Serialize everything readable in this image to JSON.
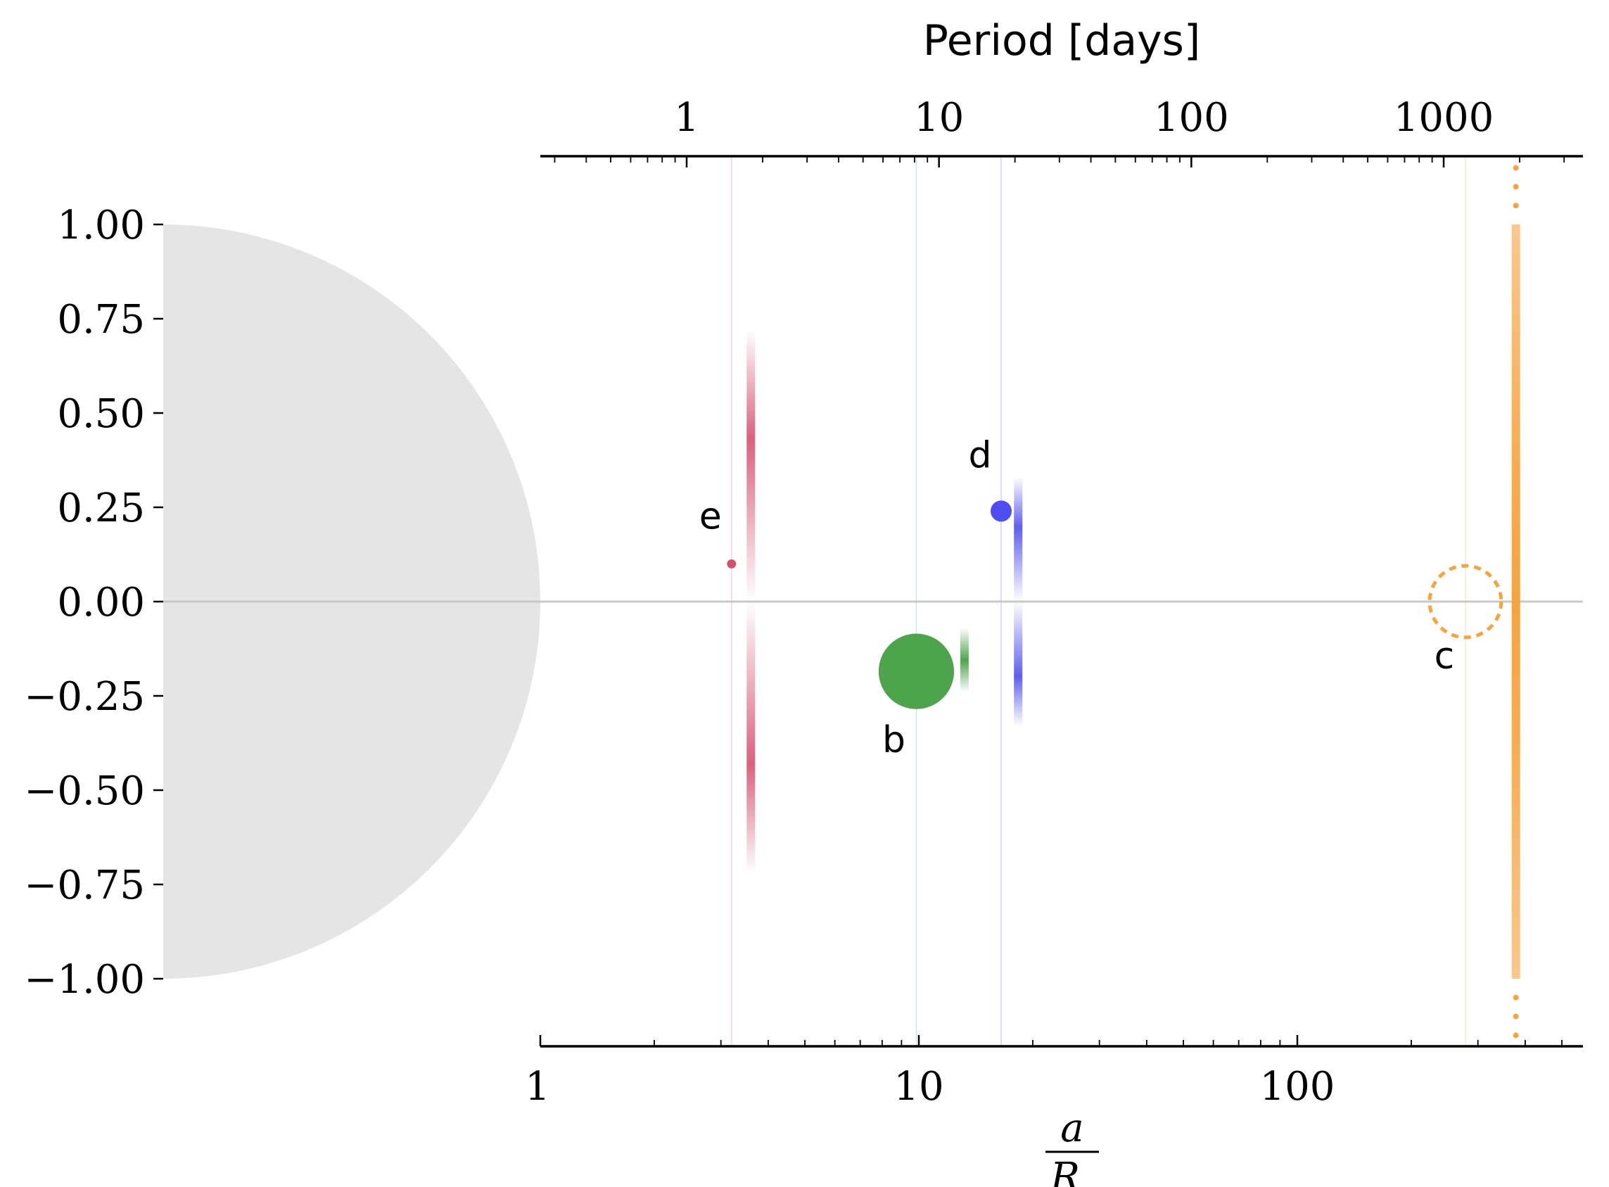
{
  "chart_data": {
    "type": "scatter",
    "title": "",
    "top_axis": {
      "label": "Period [days]",
      "scale": "log",
      "tick_labels": [
        "1",
        "10",
        "100",
        "1000"
      ]
    },
    "bottom_axis": {
      "label_numerator": "a",
      "label_denominator": "R",
      "label_subscript": "⋆",
      "scale": "log",
      "xlim": [
        1,
        550
      ],
      "tick_labels": [
        "1",
        "10",
        "100"
      ]
    },
    "y_axis": {
      "label": "",
      "ylim": [
        -1.18,
        1.18
      ],
      "tick_labels": [
        "1.00",
        "0.75",
        "0.50",
        "0.25",
        "0.00",
        "−0.25",
        "−0.50",
        "−0.75",
        "−1.00"
      ],
      "tick_values": [
        1.0,
        0.75,
        0.5,
        0.25,
        0.0,
        -0.25,
        -0.5,
        -0.75,
        -1.0
      ]
    },
    "star": {
      "radius": 1.0,
      "color": "#e5e5e5"
    },
    "zero_line_color": "#c8c8c8",
    "planets": [
      {
        "label": "e",
        "a_over_rstar": 3.2,
        "impact": 0.1,
        "size": 0.012,
        "color": "#d6506e",
        "style": "solid",
        "period_days": 0.75
      },
      {
        "label": "b",
        "a_over_rstar": 9.85,
        "impact": -0.185,
        "size": 0.1,
        "color": "#4ea44c",
        "style": "solid",
        "period_days": 4.3
      },
      {
        "label": "d",
        "a_over_rstar": 16.5,
        "impact": 0.24,
        "size": 0.028,
        "color": "#4e4df0",
        "style": "solid",
        "period_days": 9.2
      },
      {
        "label": "c",
        "a_over_rstar": 278,
        "impact": 0.0,
        "size": 0.095,
        "color": "#f6a440",
        "style": "dashed",
        "period_days": 625
      }
    ],
    "grazing_bands": [
      {
        "planet": "e",
        "a_over_rstar": 3.6,
        "color": "#d6506e",
        "from": -0.72,
        "to": 0.72
      },
      {
        "planet": "b",
        "a_over_rstar": 13.2,
        "color": "#4ea44c",
        "from": -0.24,
        "to": -0.07
      },
      {
        "planet": "d",
        "a_over_rstar": 18.3,
        "color": "#4e4df0",
        "from": -0.33,
        "to": 0.33
      },
      {
        "planet": "c",
        "a_over_rstar": 378,
        "color": "#f6a440",
        "from": -1.0,
        "to": 1.0,
        "dotted_beyond": 0.1
      }
    ]
  }
}
